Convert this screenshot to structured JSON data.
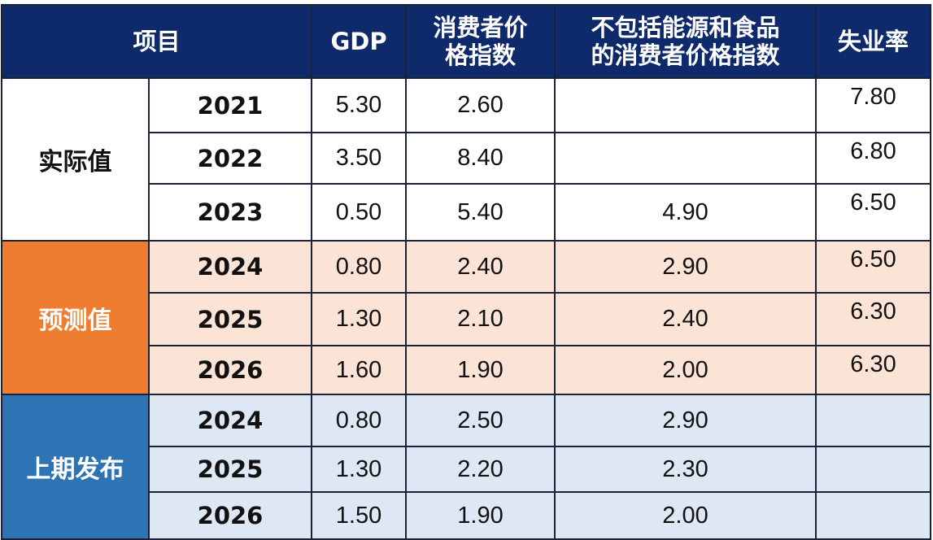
{
  "header": {
    "item": "项目",
    "gdp": "GDP",
    "cpi_line1": "消费者价",
    "cpi_line2": "格指数",
    "core_line1": "不包括能源和食品",
    "core_line2": "的消费者价格指数",
    "unemployment": "失业率"
  },
  "groups": {
    "actual": "实际值",
    "forecast": "预测值",
    "previous": "上期发布"
  },
  "colors": {
    "header_bg": "#0f2a6b",
    "forecast_label_bg": "#ef7d31",
    "forecast_row_bg": "#fbe3d6",
    "previous_label_bg": "#2e74b5",
    "previous_row_bg": "#dde8f4"
  },
  "rows": [
    {
      "year": "2021",
      "gdp": "5.30",
      "cpi": "2.60",
      "core": "",
      "unemp": "7.80"
    },
    {
      "year": "2022",
      "gdp": "3.50",
      "cpi": "8.40",
      "core": "",
      "unemp": "6.80"
    },
    {
      "year": "2023",
      "gdp": "0.50",
      "cpi": "5.40",
      "core": "4.90",
      "unemp": "6.50"
    },
    {
      "year": "2024",
      "gdp": "0.80",
      "cpi": "2.40",
      "core": "2.90",
      "unemp": "6.50"
    },
    {
      "year": "2025",
      "gdp": "1.30",
      "cpi": "2.10",
      "core": "2.40",
      "unemp": "6.30"
    },
    {
      "year": "2026",
      "gdp": "1.60",
      "cpi": "1.90",
      "core": "2.00",
      "unemp": "6.30"
    },
    {
      "year": "2024",
      "gdp": "0.80",
      "cpi": "2.50",
      "core": "2.90",
      "unemp": ""
    },
    {
      "year": "2025",
      "gdp": "1.30",
      "cpi": "2.20",
      "core": "2.30",
      "unemp": ""
    },
    {
      "year": "2026",
      "gdp": "1.50",
      "cpi": "1.90",
      "core": "2.00",
      "unemp": ""
    }
  ]
}
